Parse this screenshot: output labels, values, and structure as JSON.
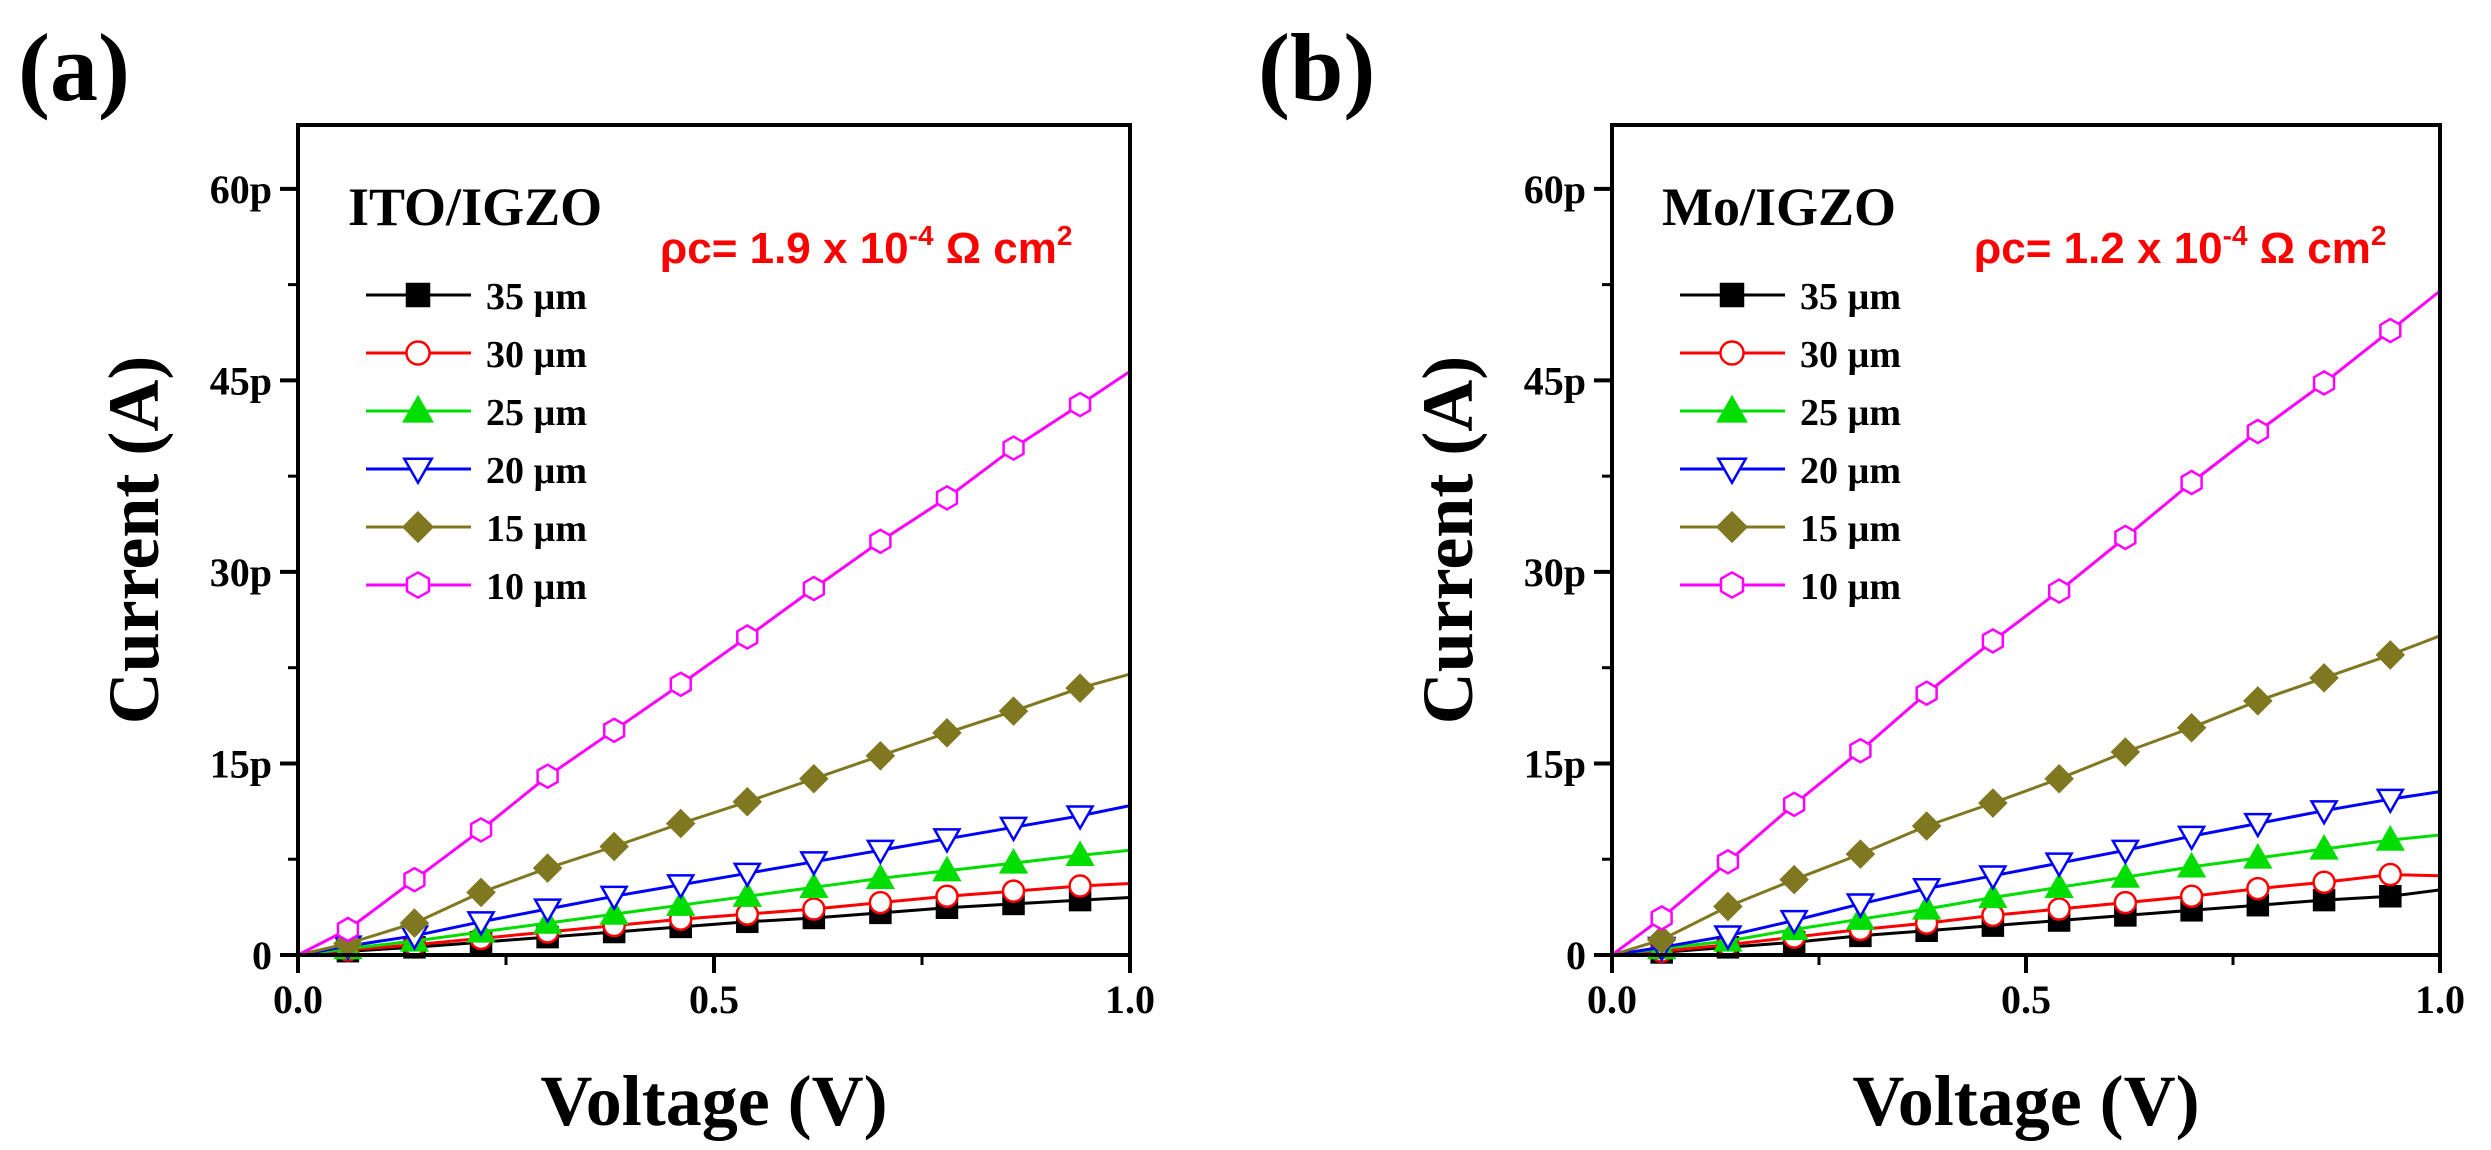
{
  "figure": {
    "background": "#ffffff",
    "axis_color": "#000000",
    "annotation_color": "#ff0000",
    "series_style": [
      {
        "name": "35 µm",
        "color": "#000000",
        "marker": "square",
        "filled": true
      },
      {
        "name": "30 µm",
        "color": "#ff0000",
        "marker": "circle",
        "filled": false
      },
      {
        "name": "25 µm",
        "color": "#00dd00",
        "marker": "triangle-up",
        "filled": true
      },
      {
        "name": "20 µm",
        "color": "#0000ff",
        "marker": "triangle-down",
        "filled": false
      },
      {
        "name": "15 µm",
        "color": "#807820",
        "marker": "diamond",
        "filled": true
      },
      {
        "name": "10 µm",
        "color": "#ff00ff",
        "marker": "hexagon",
        "filled": false
      }
    ]
  },
  "chart_data": [
    {
      "type": "line",
      "panel_label": "(a)",
      "title": "ITO/IGZO",
      "annotation": {
        "prefix": "ρc= 1.9 x 10",
        "exponent": "-4",
        "middle": " Ω cm",
        "exponent2": "2"
      },
      "xlabel": "Voltage (V)",
      "ylabel": "Current (A)",
      "xlim": [
        0.0,
        1.0
      ],
      "ylim": [
        0,
        65
      ],
      "xticks": [
        0.0,
        0.5,
        1.0
      ],
      "xtick_labels": [
        "0.0",
        "0.5",
        "1.0"
      ],
      "yticks": [
        0,
        15,
        30,
        45,
        60
      ],
      "ytick_labels": [
        "0",
        "15p",
        "30p",
        "45p",
        "60p"
      ],
      "y_unit": "pA",
      "legend_location": "upper-left",
      "x": [
        0.06,
        0.14,
        0.22,
        0.3,
        0.38,
        0.46,
        0.54,
        0.62,
        0.7,
        0.78,
        0.86,
        0.94
      ],
      "series": [
        {
          "name": "35 µm",
          "values": [
            0.3,
            0.6,
            1.0,
            1.4,
            1.8,
            2.2,
            2.6,
            2.9,
            3.3,
            3.7,
            4.0,
            4.3
          ],
          "end_value": 4.5
        },
        {
          "name": "30 µm",
          "values": [
            0.4,
            0.8,
            1.3,
            1.8,
            2.3,
            2.8,
            3.2,
            3.6,
            4.1,
            4.6,
            5.0,
            5.4
          ],
          "end_value": 5.6
        },
        {
          "name": "25 µm",
          "values": [
            0.5,
            1.1,
            1.8,
            2.5,
            3.2,
            3.9,
            4.6,
            5.3,
            6.0,
            6.6,
            7.2,
            7.8
          ],
          "end_value": 8.2
        },
        {
          "name": "20 µm",
          "values": [
            0.7,
            1.5,
            2.6,
            3.6,
            4.6,
            5.5,
            6.4,
            7.3,
            8.2,
            9.1,
            10.0,
            10.9
          ],
          "end_value": 11.7
        },
        {
          "name": "15 µm",
          "values": [
            0.9,
            2.5,
            4.9,
            6.8,
            8.5,
            10.3,
            12.0,
            13.8,
            15.6,
            17.4,
            19.1,
            20.9
          ],
          "end_value": 22.0
        },
        {
          "name": "10 µm",
          "values": [
            2.0,
            5.9,
            9.8,
            14.0,
            17.6,
            21.2,
            24.9,
            28.7,
            32.4,
            35.8,
            39.7,
            43.1
          ],
          "end_value": 45.7
        }
      ]
    },
    {
      "type": "line",
      "panel_label": "(b)",
      "title": "Mo/IGZO",
      "annotation": {
        "prefix": "ρc= 1.2 x 10",
        "exponent": "-4",
        "middle": " Ω cm",
        "exponent2": "2"
      },
      "xlabel": "Voltage (V)",
      "ylabel": "Current (A)",
      "xlim": [
        0.0,
        1.0
      ],
      "ylim": [
        0,
        65
      ],
      "xticks": [
        0.0,
        0.5,
        1.0
      ],
      "xtick_labels": [
        "0.0",
        "0.5",
        "1.0"
      ],
      "yticks": [
        0,
        15,
        30,
        45,
        60
      ],
      "ytick_labels": [
        "0",
        "15p",
        "30p",
        "45p",
        "60p"
      ],
      "y_unit": "pA",
      "legend_location": "upper-left",
      "x": [
        0.06,
        0.14,
        0.22,
        0.3,
        0.38,
        0.46,
        0.54,
        0.62,
        0.7,
        0.78,
        0.86,
        0.94
      ],
      "series": [
        {
          "name": "35 µm",
          "values": [
            0.2,
            0.6,
            1.0,
            1.5,
            1.9,
            2.3,
            2.7,
            3.1,
            3.5,
            3.9,
            4.3,
            4.6
          ],
          "end_value": 5.1
        },
        {
          "name": "30 µm",
          "values": [
            0.3,
            0.8,
            1.4,
            2.0,
            2.5,
            3.1,
            3.6,
            4.1,
            4.6,
            5.2,
            5.7,
            6.3
          ],
          "end_value": 6.2
        },
        {
          "name": "25 µm",
          "values": [
            0.5,
            1.1,
            2.0,
            2.8,
            3.6,
            4.5,
            5.3,
            6.1,
            6.9,
            7.6,
            8.3,
            9.0
          ],
          "end_value": 9.4
        },
        {
          "name": "20 µm",
          "values": [
            0.6,
            1.5,
            2.7,
            4.0,
            5.2,
            6.2,
            7.2,
            8.2,
            9.3,
            10.3,
            11.3,
            12.2
          ],
          "end_value": 12.8
        },
        {
          "name": "15 µm",
          "values": [
            1.2,
            3.8,
            5.9,
            7.9,
            10.1,
            11.9,
            13.8,
            15.9,
            17.8,
            19.9,
            21.7,
            23.5
          ],
          "end_value": 25.0
        },
        {
          "name": "10 µm",
          "values": [
            2.9,
            7.3,
            11.8,
            16.0,
            20.5,
            24.6,
            28.5,
            32.7,
            37.0,
            41.0,
            44.8,
            48.9
          ],
          "end_value": 52.0
        }
      ]
    }
  ]
}
